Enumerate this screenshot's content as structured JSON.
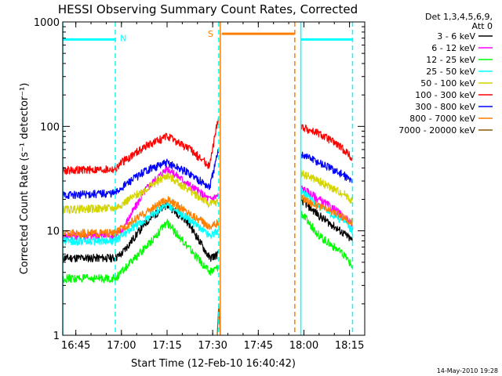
{
  "chart_data": {
    "type": "line",
    "title": "HESSI Observing Summary Count Rates, Corrected",
    "xlabel": "Start Time (12-Feb-10 16:40:42)",
    "ylabel": "Corrected Count Rate (s⁻¹ detector⁻¹)",
    "y_scale": "log",
    "ylim": [
      1,
      1000
    ],
    "xlim": [
      "16:40:42",
      "18:20:00"
    ],
    "x_ticks": [
      "16:45",
      "17:00",
      "17:15",
      "17:30",
      "17:45",
      "18:00",
      "18:15"
    ],
    "y_ticks": [
      "1",
      "10",
      "100",
      "1000"
    ],
    "grid": false,
    "legend_title": [
      "Det 1,3,4,5,6,9,",
      "Att 0"
    ],
    "legend_placement": "right",
    "series": [
      {
        "name": "3 - 6 keV",
        "color": "#000000",
        "x": [
          "16:40:42",
          "16:58:00",
          "17:00:00",
          "17:08:00",
          "17:15:00",
          "17:22:00",
          "17:29:00",
          "17:32:00",
          "17:59:00",
          "18:05:00",
          "18:10:00",
          "18:14:00",
          "18:16:00"
        ],
        "y": [
          5.5,
          5.5,
          6,
          12,
          18,
          12,
          5.5,
          6,
          20,
          14,
          11,
          9,
          8
        ]
      },
      {
        "name": "6 - 12 keV",
        "color": "#ff00ff",
        "x": [
          "16:40:42",
          "16:58:00",
          "17:00:00",
          "17:08:00",
          "17:15:00",
          "17:22:00",
          "17:29:00",
          "17:32:00",
          "17:59:00",
          "18:05:00",
          "18:10:00",
          "18:14:00",
          "18:16:00"
        ],
        "y": [
          9,
          9,
          10,
          25,
          40,
          28,
          20,
          22,
          26,
          20,
          16,
          13,
          11
        ]
      },
      {
        "name": "12 - 25 keV",
        "color": "#00ff00",
        "x": [
          "16:40:42",
          "16:58:00",
          "17:00:00",
          "17:08:00",
          "17:15:00",
          "17:22:00",
          "17:29:00",
          "17:32:00",
          "17:59:00",
          "18:05:00",
          "18:10:00",
          "18:14:00",
          "18:16:00"
        ],
        "y": [
          3.5,
          3.5,
          4,
          7,
          12,
          7,
          4,
          4.5,
          15,
          9,
          7,
          5.5,
          4.5
        ]
      },
      {
        "name": "25 - 50 keV",
        "color": "#00ffff",
        "x": [
          "16:40:42",
          "16:58:00",
          "17:00:00",
          "17:08:00",
          "17:15:00",
          "17:22:00",
          "17:29:00",
          "17:32:00",
          "17:59:00",
          "18:05:00",
          "18:10:00",
          "18:14:00",
          "18:16:00"
        ],
        "y": [
          8,
          8,
          9,
          13,
          18,
          13,
          9,
          10,
          24,
          17,
          14,
          12,
          10
        ]
      },
      {
        "name": "50 - 100 keV",
        "color": "#d4d400",
        "x": [
          "16:40:42",
          "16:58:00",
          "17:00:00",
          "17:08:00",
          "17:15:00",
          "17:22:00",
          "17:29:00",
          "17:32:00",
          "17:59:00",
          "18:05:00",
          "18:10:00",
          "18:14:00",
          "18:16:00"
        ],
        "y": [
          16,
          16.5,
          18,
          25,
          34,
          25,
          18,
          19,
          36,
          30,
          25,
          22,
          19
        ]
      },
      {
        "name": "100 - 300 keV",
        "color": "#ff0000",
        "x": [
          "16:40:42",
          "16:58:00",
          "17:00:00",
          "17:08:00",
          "17:15:00",
          "17:22:00",
          "17:29:00",
          "17:32:00",
          "17:59:00",
          "18:05:00",
          "18:10:00",
          "18:14:00",
          "18:16:00"
        ],
        "y": [
          38,
          39,
          45,
          65,
          80,
          62,
          42,
          130,
          100,
          85,
          70,
          57,
          48
        ]
      },
      {
        "name": "300 - 800 keV",
        "color": "#0000ff",
        "x": [
          "16:40:42",
          "16:58:00",
          "17:00:00",
          "17:08:00",
          "17:15:00",
          "17:22:00",
          "17:29:00",
          "17:32:00",
          "17:59:00",
          "18:05:00",
          "18:10:00",
          "18:14:00",
          "18:16:00"
        ],
        "y": [
          22,
          23,
          26,
          38,
          45,
          36,
          26,
          60,
          55,
          45,
          38,
          33,
          29
        ]
      },
      {
        "name": "800 - 7000 keV",
        "color": "#ff7f00",
        "x": [
          "16:40:42",
          "16:58:00",
          "17:00:00",
          "17:08:00",
          "17:15:00",
          "17:22:00",
          "17:29:00",
          "17:32:00",
          "17:59:00",
          "18:05:00",
          "18:10:00",
          "18:14:00",
          "18:16:00"
        ],
        "y": [
          9.5,
          9.5,
          10.5,
          15,
          20,
          15,
          11,
          12,
          21,
          17,
          15,
          13,
          12
        ]
      },
      {
        "name": "7000 - 20000 keV",
        "color": "#8b5a00",
        "x": [
          "17:31:30",
          "17:32:00",
          "17:32:30"
        ],
        "y": [
          1.3,
          2,
          1.3
        ]
      }
    ],
    "annotations": [
      {
        "label": "N",
        "color": "#00ffff",
        "x": "16:58:00",
        "y": 700
      },
      {
        "label": "S",
        "color": "#ff7f00",
        "x": "17:32:00",
        "y": 770
      }
    ],
    "intervals": [
      {
        "name": "cyan",
        "color": "#00ffff",
        "from": "16:40:42",
        "to": "16:58:00",
        "y": 680
      },
      {
        "name": "orange",
        "color": "#ff7f00",
        "from": "17:33:00",
        "to": "17:57:00",
        "y": 770
      },
      {
        "name": "cyan2",
        "color": "#00ffff",
        "from": "17:59:00",
        "to": "18:16:00",
        "y": 680
      }
    ],
    "vlines": [
      {
        "color": "#00ffff",
        "x": "16:40:42",
        "style": "solid"
      },
      {
        "color": "#00ffff",
        "x": "16:58:00",
        "style": "dashed"
      },
      {
        "color": "#ff7f00",
        "x": "17:32:30",
        "style": "solid"
      },
      {
        "color": "#00ffff",
        "x": "17:32:00",
        "style": "dashed"
      },
      {
        "color": "#ff7f00",
        "x": "17:57:00",
        "style": "dashed"
      },
      {
        "color": "#00ffff",
        "x": "17:59:00",
        "style": "solid"
      },
      {
        "color": "#00ffff",
        "x": "18:16:00",
        "style": "dashed"
      }
    ]
  },
  "footer": {
    "timestamp": "14-May-2010 19:28"
  }
}
